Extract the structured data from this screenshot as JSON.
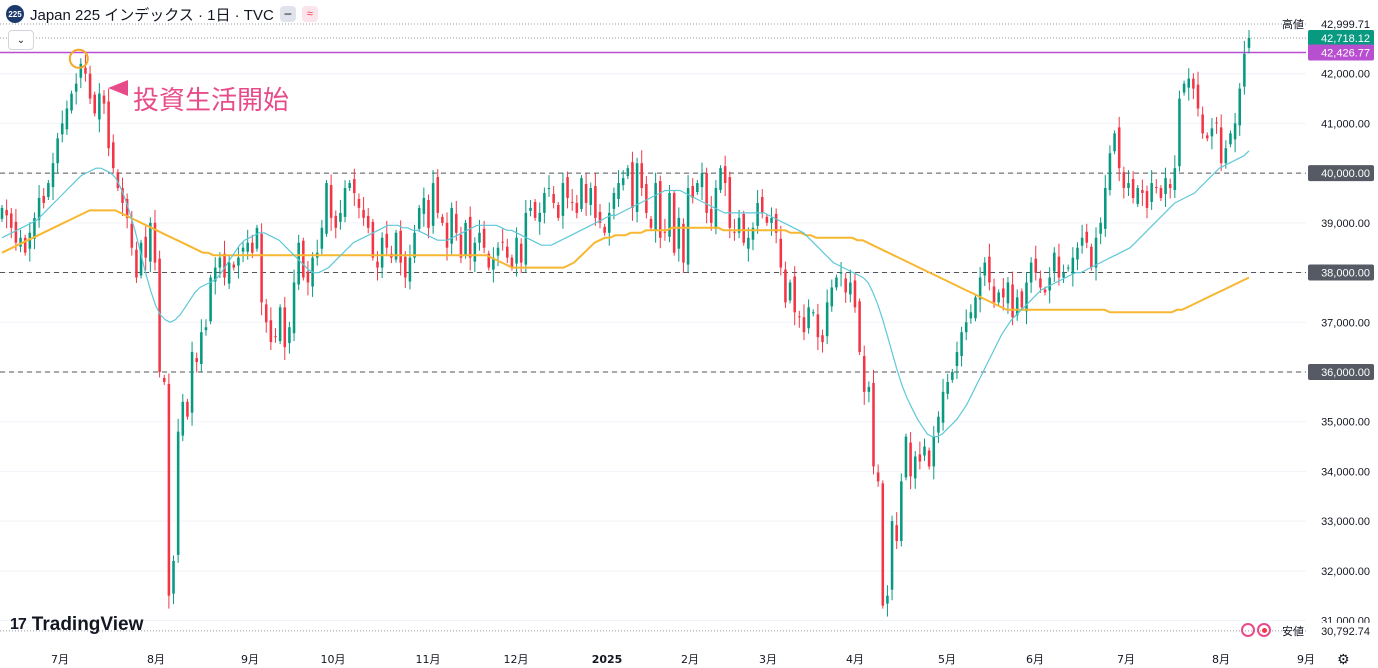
{
  "header": {
    "symbol_badge": "225",
    "title": "Japan 225 インデックス · 1日 · TVC",
    "btn_minus": "━",
    "btn_wave": "≈"
  },
  "annotation": {
    "text": "投資生活開始"
  },
  "logo": {
    "mark": "17",
    "text": "TradingView"
  },
  "colors": {
    "up": "#089981",
    "down": "#f23645",
    "ma_short": "#5ec8d8",
    "ma_long": "#f7b731",
    "pink_line": "#b84fd1",
    "highlight_circle": "#f5a623",
    "annotation": "#e84b8a"
  },
  "chart_data": {
    "type": "candlestick",
    "title": "Japan 225 インデックス · 1日 · TVC",
    "ylim": [
      30792,
      43000
    ],
    "y_ticks": [
      31000,
      32000,
      33000,
      34000,
      35000,
      36000,
      37000,
      38000,
      39000,
      40000,
      41000,
      42000
    ],
    "y_tick_labels": [
      "31,000.00",
      "32,000.00",
      "33,000.00",
      "34,000.00",
      "35,000.00",
      "36,000.00",
      "37,000.00",
      "38,000.00",
      "39,000.00",
      "40,000.00",
      "41,000.00",
      "42,000.00"
    ],
    "x_labels": [
      "7月",
      "8月",
      "9月",
      "10月",
      "11月",
      "12月",
      "2025",
      "2月",
      "3月",
      "4月",
      "5月",
      "6月",
      "7月",
      "8月",
      "9月"
    ],
    "dashed_levels": [
      40000,
      38000,
      36000
    ],
    "price_tags": [
      {
        "label": "高値",
        "value": "42,999.71",
        "price": 42999.71,
        "style": "plain"
      },
      {
        "label": "",
        "value": "42,718.12",
        "price": 42718.12,
        "style": "green"
      },
      {
        "label": "",
        "value": "42,426.77",
        "price": 42426.77,
        "style": "purple"
      },
      {
        "label": "安値",
        "value": "30,792.74",
        "price": 30792.74,
        "style": "plain"
      }
    ],
    "horizontal_line": 42426.77,
    "highlight_candle_price": 42300,
    "closes": [
      39300,
      39150,
      38900,
      38600,
      38700,
      38400,
      38800,
      39100,
      39500,
      39400,
      39800,
      40200,
      40700,
      41000,
      41300,
      41600,
      41800,
      42200,
      42000,
      41500,
      41200,
      41600,
      41400,
      40500,
      40100,
      39700,
      39400,
      39100,
      38500,
      37900,
      38600,
      38300,
      39000,
      38200,
      36000,
      35800,
      31500,
      32200,
      34800,
      35400,
      35100,
      36400,
      36200,
      36800,
      36900,
      37900,
      38100,
      38300,
      37900,
      38200,
      38100,
      38300,
      38500,
      38600,
      38400,
      38900,
      37400,
      37000,
      36600,
      36700,
      37300,
      36500,
      36900,
      37800,
      38600,
      37900,
      37800,
      38300,
      38400,
      38900,
      39800,
      39100,
      38900,
      39200,
      39700,
      39800,
      39600,
      39300,
      39100,
      38900,
      38300,
      38100,
      38700,
      38500,
      38300,
      38800,
      38200,
      37900,
      38300,
      38800,
      39300,
      39500,
      38900,
      39800,
      39200,
      39000,
      38500,
      39300,
      38800,
      38300,
      39000,
      38300,
      38600,
      38800,
      38500,
      38100,
      38300,
      38500,
      38600,
      38300,
      38100,
      38700,
      38200,
      39200,
      39300,
      39100,
      39200,
      39600,
      39700,
      39400,
      39100,
      39800,
      39500,
      39400,
      39200,
      39900,
      39400,
      39700,
      39100,
      39000,
      38800,
      39200,
      39600,
      39800,
      39900,
      40100,
      39300,
      40200,
      39700,
      39200,
      38900,
      39800,
      38700,
      38800,
      39600,
      38400,
      39100,
      38200,
      39700,
      39500,
      39800,
      40000,
      39200,
      39000,
      39700,
      40100,
      39800,
      38900,
      38800,
      39100,
      38600,
      38700,
      38900,
      39400,
      39200,
      39000,
      39100,
      38800,
      38100,
      37400,
      37800,
      37200,
      37100,
      36800,
      37300,
      37200,
      36700,
      36600,
      37400,
      37700,
      37900,
      38000,
      37600,
      37800,
      37300,
      36400,
      35600,
      35700,
      34100,
      33800,
      31300,
      31500,
      33000,
      32600,
      33800,
      34700,
      33900,
      34300,
      34200,
      34500,
      34100,
      34700,
      35100,
      35600,
      35800,
      36000,
      36400,
      36800,
      37000,
      37200,
      37500,
      37900,
      38200,
      37800,
      37400,
      37600,
      37500,
      37800,
      37100,
      37500,
      37300,
      37800,
      38200,
      38000,
      37700,
      37600,
      37900,
      38400,
      37900,
      38000,
      38100,
      38300,
      38500,
      38700,
      38600,
      38100,
      38700,
      39000,
      39700,
      40400,
      40800,
      40100,
      39700,
      39800,
      39500,
      39700,
      39600,
      39300,
      39800,
      39700,
      39500,
      39900,
      39700,
      40100,
      41500,
      41800,
      41900,
      41700,
      41300,
      40800,
      40700,
      40900,
      41000,
      40200,
      40500,
      40800,
      41000,
      41700,
      42400,
      42718
    ],
    "ma_short": [
      38700,
      38750,
      38800,
      38850,
      38900,
      38950,
      39000,
      39050,
      39150,
      39250,
      39350,
      39450,
      39550,
      39650,
      39750,
      39850,
      39950,
      40000,
      40050,
      40100,
      40100,
      40050,
      40000,
      39900,
      39700,
      39450,
      39150,
      38800,
      38400,
      38000,
      37650,
      37350,
      37150,
      37050,
      37000,
      37050,
      37150,
      37300,
      37450,
      37600,
      37700,
      37750,
      37800,
      37850,
      37950,
      38100,
      38250,
      38400,
      38550,
      38650,
      38700,
      38750,
      38800,
      38800,
      38750,
      38700,
      38650,
      38550,
      38450,
      38350,
      38250,
      38150,
      38050,
      38000,
      38000,
      38050,
      38100,
      38200,
      38300,
      38400,
      38500,
      38600,
      38650,
      38700,
      38750,
      38800,
      38850,
      38900,
      38950,
      38950,
      38950,
      38900,
      38900,
      38850,
      38850,
      38800,
      38750,
      38700,
      38650,
      38650,
      38650,
      38700,
      38750,
      38800,
      38850,
      38900,
      38950,
      38950,
      38950,
      38950,
      38950,
      38900,
      38850,
      38850,
      38800,
      38750,
      38700,
      38650,
      38600,
      38550,
      38550,
      38550,
      38600,
      38650,
      38700,
      38750,
      38800,
      38850,
      38900,
      38950,
      39000,
      39050,
      39100,
      39150,
      39150,
      39200,
      39250,
      39300,
      39350,
      39400,
      39450,
      39500,
      39550,
      39600,
      39650,
      39650,
      39650,
      39650,
      39600,
      39550,
      39500,
      39450,
      39400,
      39350,
      39300,
      39250,
      39200,
      39200,
      39200,
      39200,
      39200,
      39200,
      39200,
      39200,
      39200,
      39150,
      39100,
      39050,
      39000,
      38950,
      38900,
      38850,
      38800,
      38700,
      38600,
      38500,
      38400,
      38300,
      38200,
      38150,
      38100,
      38050,
      38000,
      37950,
      37900,
      37800,
      37600,
      37350,
      37050,
      36700,
      36350,
      36000,
      35700,
      35450,
      35250,
      35050,
      34900,
      34750,
      34700,
      34700,
      34750,
      34850,
      34950,
      35050,
      35200,
      35350,
      35550,
      35750,
      35950,
      36150,
      36350,
      36550,
      36750,
      36900,
      37050,
      37150,
      37250,
      37350,
      37450,
      37550,
      37650,
      37700,
      37750,
      37800,
      37850,
      37900,
      37950,
      38000,
      38000,
      38050,
      38100,
      38150,
      38200,
      38250,
      38300,
      38350,
      38400,
      38450,
      38500,
      38600,
      38700,
      38800,
      38900,
      39000,
      39100,
      39200,
      39300,
      39400,
      39450,
      39500,
      39550,
      39600,
      39700,
      39800,
      39900,
      40000,
      40100,
      40150,
      40200,
      40250,
      40300,
      40350,
      40450
    ],
    "ma_long": [
      38400,
      38450,
      38500,
      38550,
      38600,
      38650,
      38700,
      38750,
      38800,
      38850,
      38900,
      38950,
      39000,
      39050,
      39100,
      39150,
      39200,
      39250,
      39250,
      39250,
      39250,
      39250,
      39250,
      39200,
      39150,
      39100,
      39050,
      39000,
      38950,
      38900,
      38850,
      38800,
      38750,
      38700,
      38650,
      38600,
      38550,
      38500,
      38450,
      38400,
      38400,
      38350,
      38350,
      38350,
      38350,
      38350,
      38350,
      38350,
      38350,
      38350,
      38350,
      38350,
      38350,
      38350,
      38350,
      38350,
      38350,
      38350,
      38350,
      38350,
      38350,
      38350,
      38350,
      38350,
      38350,
      38350,
      38350,
      38350,
      38350,
      38350,
      38350,
      38350,
      38350,
      38350,
      38350,
      38350,
      38350,
      38350,
      38350,
      38350,
      38350,
      38350,
      38350,
      38350,
      38350,
      38350,
      38350,
      38350,
      38350,
      38350,
      38350,
      38350,
      38350,
      38350,
      38350,
      38300,
      38250,
      38200,
      38150,
      38100,
      38100,
      38100,
      38100,
      38100,
      38100,
      38100,
      38100,
      38100,
      38100,
      38100,
      38150,
      38200,
      38300,
      38400,
      38500,
      38600,
      38650,
      38700,
      38700,
      38750,
      38750,
      38750,
      38800,
      38800,
      38800,
      38850,
      38850,
      38850,
      38850,
      38850,
      38900,
      38900,
      38900,
      38900,
      38900,
      38900,
      38900,
      38900,
      38900,
      38900,
      38850,
      38850,
      38850,
      38850,
      38850,
      38850,
      38850,
      38850,
      38850,
      38850,
      38850,
      38850,
      38850,
      38800,
      38800,
      38800,
      38750,
      38750,
      38700,
      38700,
      38700,
      38700,
      38700,
      38700,
      38700,
      38700,
      38650,
      38650,
      38600,
      38550,
      38500,
      38450,
      38400,
      38350,
      38300,
      38250,
      38200,
      38150,
      38100,
      38050,
      38000,
      37950,
      37900,
      37850,
      37800,
      37750,
      37700,
      37650,
      37600,
      37550,
      37500,
      37450,
      37400,
      37350,
      37300,
      37250,
      37250,
      37250,
      37250,
      37250,
      37250,
      37250,
      37250,
      37250,
      37250,
      37250,
      37250,
      37250,
      37250,
      37250,
      37250,
      37250,
      37250,
      37250,
      37250,
      37200,
      37200,
      37200,
      37200,
      37200,
      37200,
      37200,
      37200,
      37200,
      37200,
      37200,
      37200,
      37200,
      37250,
      37250,
      37300,
      37350,
      37400,
      37450,
      37500,
      37550,
      37600,
      37650,
      37700,
      37750,
      37800,
      37850,
      37900
    ]
  }
}
